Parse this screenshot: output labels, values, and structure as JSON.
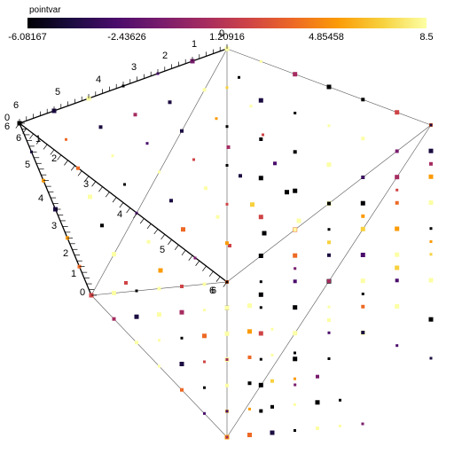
{
  "colorbar": {
    "title": "pointvar",
    "ticks": [
      "-6.08167",
      "-2.43626",
      "1.20916",
      "4.85458",
      "8.5"
    ],
    "min": -6.08167,
    "max": 8.5,
    "colors": [
      "#000004",
      "#1b0c41",
      "#4a0c6b",
      "#781c6d",
      "#a52c60",
      "#cf4446",
      "#ed6925",
      "#fb9b06",
      "#f7d13d",
      "#fcffa4"
    ]
  },
  "axes": {
    "upper_labels": [
      "6",
      "5",
      "4",
      "3",
      "2",
      "1",
      "0"
    ],
    "left_labels": [
      "0",
      "1",
      "2",
      "3",
      "4",
      "5",
      "6"
    ],
    "depth_labels": [
      "6",
      "5",
      "4",
      "3",
      "2",
      "1",
      "0"
    ],
    "corner_labels": [
      "0",
      "6",
      "6"
    ]
  },
  "colors": {
    "background": "#ffffff",
    "edge": "#000000"
  }
}
